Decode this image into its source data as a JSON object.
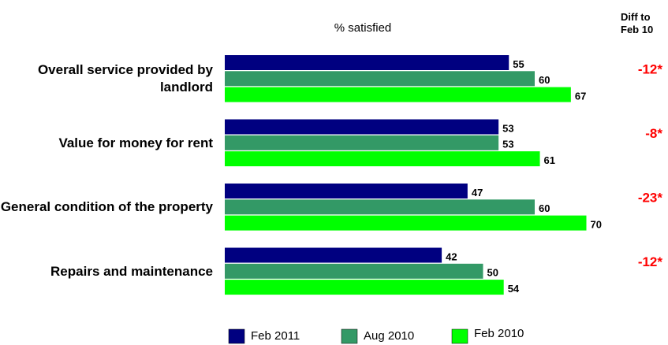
{
  "chart_data": {
    "type": "bar",
    "orientation": "horizontal",
    "title": "% satisfied",
    "diff_title": "Diff to Feb 10",
    "categories": [
      "Overall service provided by landlord",
      "Value for money for rent",
      "General condition of the property",
      "Repairs and maintenance"
    ],
    "series": [
      {
        "name": "Feb 2011",
        "color": "#000080",
        "values": [
          55,
          53,
          47,
          42
        ]
      },
      {
        "name": "Aug 2010",
        "color": "#339966",
        "values": [
          60,
          53,
          60,
          50
        ]
      },
      {
        "name": "Feb 2010",
        "color": "#00ff00",
        "values": [
          67,
          61,
          70,
          54
        ]
      }
    ],
    "diff_labels": [
      "-12*",
      "-8*",
      "-23*",
      "-12*"
    ],
    "diff_color": "#ff0000"
  }
}
